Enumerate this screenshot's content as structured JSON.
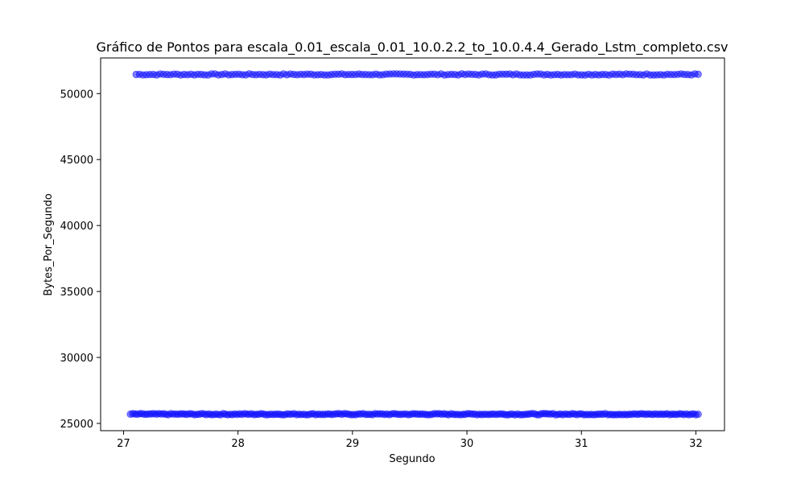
{
  "chart_data": {
    "type": "scatter",
    "title": "Gráfico de Pontos para escala_0.01_escala_0.01_10.0.2.2_to_10.0.4.4_Gerado_Lstm_completo.csv",
    "xlabel": "Segundo",
    "ylabel": "Bytes_Por_Segundo",
    "xlim": [
      26.8,
      32.25
    ],
    "ylim": [
      24450,
      52700
    ],
    "x_ticks": [
      27,
      28,
      29,
      30,
      31,
      32
    ],
    "y_ticks": [
      25000,
      30000,
      35000,
      40000,
      45000,
      50000
    ],
    "marker_color": "#0000ff",
    "marker_alpha": 0.5,
    "grid": false,
    "series": [
      {
        "description_levels": "two bands of points",
        "bands": [
          {
            "y": 51450,
            "x_start": 27.11,
            "x_end": 32.02,
            "count": 165
          },
          {
            "y": 25700,
            "x_start": 27.06,
            "x_end": 32.02,
            "count": 240
          }
        ]
      }
    ]
  }
}
